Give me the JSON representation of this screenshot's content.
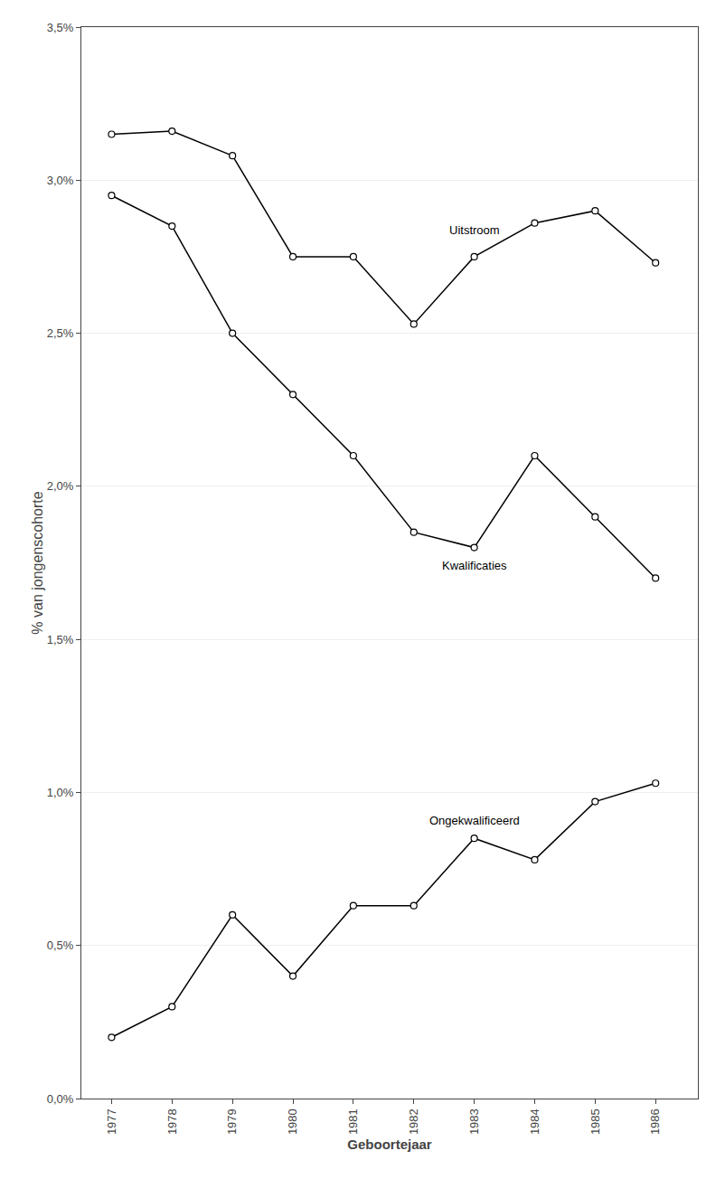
{
  "chart_data": {
    "type": "line",
    "x": [
      1977,
      1978,
      1979,
      1980,
      1981,
      1982,
      1983,
      1984,
      1985,
      1986
    ],
    "series": [
      {
        "name": "Uitstroom",
        "color": "#000000",
        "marker": "circle",
        "values": [
          0.0315,
          0.0316,
          0.0308,
          0.0275,
          0.0275,
          0.0253,
          0.0275,
          0.0286,
          0.029,
          0.0273
        ]
      },
      {
        "name": "Kwalificaties",
        "color": "#000000",
        "marker": "circle",
        "values": [
          0.0295,
          0.0285,
          0.025,
          0.023,
          0.021,
          0.0185,
          0.018,
          0.021,
          0.019,
          0.017
        ]
      },
      {
        "name": "Ongekwalificeerd",
        "color": "#000000",
        "marker": "circle",
        "values": [
          0.002,
          0.003,
          0.006,
          0.004,
          0.0063,
          0.0063,
          0.0085,
          0.0078,
          0.0097,
          0.0103
        ]
      }
    ],
    "xlabel": "Geboortejaar",
    "ylabel": "% van jongenscohorte",
    "xlim": [
      1976.5,
      1986.7
    ],
    "xticks": [
      1977,
      1978,
      1979,
      1980,
      1981,
      1982,
      1983,
      1984,
      1985,
      1986
    ],
    "ylim": [
      0.0,
      0.035
    ],
    "yticks": [
      {
        "value": 0.0,
        "label": "0,0%"
      },
      {
        "value": 0.005,
        "label": "0,5%"
      },
      {
        "value": 0.01,
        "label": "1,0%"
      },
      {
        "value": 0.015,
        "label": "1,5%"
      },
      {
        "value": 0.02,
        "label": "2,0%"
      },
      {
        "value": 0.025,
        "label": "2,5%"
      },
      {
        "value": 0.03,
        "label": "3,0%"
      },
      {
        "value": 0.035,
        "label": "3,5%"
      }
    ],
    "grid": true
  }
}
